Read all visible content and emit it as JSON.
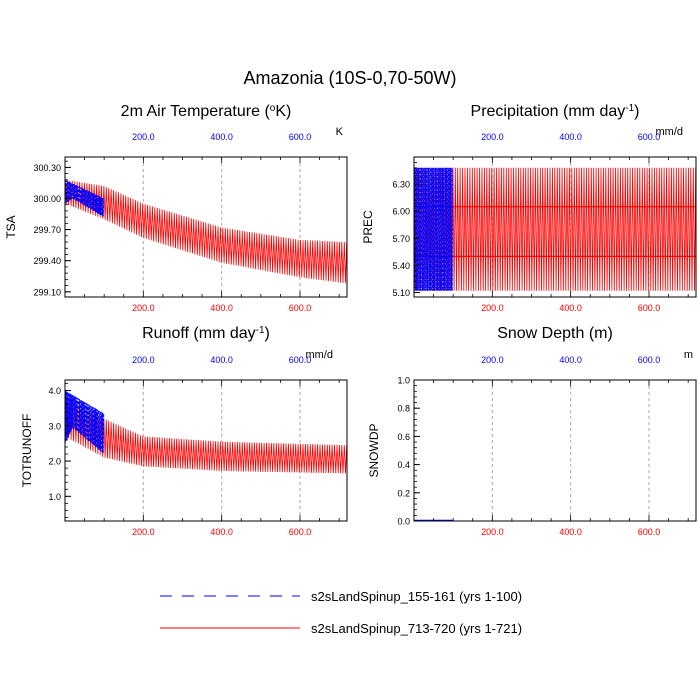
{
  "title": "Amazonia (10S-0,70-50W)",
  "legend": {
    "entries": [
      {
        "label": "s2sLandSpinup_155-161 (yrs 1-100)",
        "color": "#0000ff",
        "dash": true
      },
      {
        "label": "s2sLandSpinup_713-720 (yrs 1-721)",
        "color": "#ff0000",
        "dash": false
      }
    ]
  },
  "colors": {
    "series_a": "#0000ff",
    "series_b": "#ff0000",
    "top_axis": "#0000ff",
    "bottom_axis": "#ff0000",
    "grid": "#aaaaaa"
  },
  "chart_data": [
    {
      "type": "line",
      "title": "2m Air Temperature",
      "title_unit": "K",
      "title_unit_prefix": "o",
      "ylabel": "TSA",
      "unit_label": "K",
      "xlim": [
        0,
        720
      ],
      "ylim": [
        299.05,
        300.4
      ],
      "yticks": [
        299.1,
        299.4,
        299.7,
        300.0,
        300.3
      ],
      "ytick_labels": [
        "299.10",
        "299.40",
        "299.70",
        "300.00",
        "300.30"
      ],
      "top_ticks": [
        "200.0",
        "400.0",
        "600.0"
      ],
      "bottom_ticks": [
        "200.0",
        "400.0",
        "600.0"
      ],
      "tick_values": [
        200,
        400,
        600
      ],
      "series": [
        {
          "name": "s2sLandSpinup_155-161 (yrs 1-100)",
          "x_range": [
            0,
            100
          ],
          "upper": [
            [
              0,
              300.18
            ],
            [
              100,
              300.0
            ]
          ],
          "lower": [
            [
              0,
              299.95
            ],
            [
              20,
              300.0
            ],
            [
              100,
              299.82
            ]
          ]
        },
        {
          "name": "s2sLandSpinup_713-720 (yrs 1-721)",
          "x_range": [
            0,
            720
          ],
          "upper": [
            [
              0,
              300.18
            ],
            [
              100,
              300.12
            ],
            [
              200,
              299.95
            ],
            [
              400,
              299.72
            ],
            [
              600,
              299.6
            ],
            [
              720,
              299.58
            ]
          ],
          "lower": [
            [
              0,
              299.95
            ],
            [
              100,
              299.8
            ],
            [
              200,
              299.62
            ],
            [
              400,
              299.38
            ],
            [
              600,
              299.24
            ],
            [
              720,
              299.18
            ]
          ]
        }
      ]
    },
    {
      "type": "line",
      "title": "Precipitation (mm day",
      "title_suffix": "-1",
      "ylabel": "PREC",
      "unit_label": "mm/d",
      "xlim": [
        0,
        720
      ],
      "ylim": [
        5.05,
        6.6
      ],
      "yticks": [
        5.1,
        5.4,
        5.7,
        6.0,
        6.3
      ],
      "ytick_labels": [
        "5.10",
        "5.40",
        "5.70",
        "6.00",
        "6.30"
      ],
      "top_ticks": [
        "200.0",
        "400.0",
        "600.0"
      ],
      "bottom_ticks": [
        "200.0",
        "400.0",
        "600.0"
      ],
      "tick_values": [
        200,
        400,
        600
      ],
      "series": [
        {
          "name": "s2sLandSpinup_155-161 (yrs 1-100)",
          "x_range": [
            0,
            100
          ],
          "upper": [
            [
              0,
              6.48
            ],
            [
              100,
              6.48
            ]
          ],
          "lower": [
            [
              0,
              5.12
            ],
            [
              100,
              5.12
            ]
          ],
          "band": [
            5.5,
            6.05
          ]
        },
        {
          "name": "s2sLandSpinup_713-720 (yrs 1-721)",
          "x_range": [
            0,
            720
          ],
          "upper": [
            [
              0,
              6.48
            ],
            [
              720,
              6.48
            ]
          ],
          "lower": [
            [
              0,
              5.12
            ],
            [
              720,
              5.12
            ]
          ],
          "band": [
            5.5,
            6.05
          ]
        }
      ]
    },
    {
      "type": "line",
      "title": "Runoff (mm day",
      "title_suffix": "-1",
      "ylabel": "TOTRUNOFF",
      "unit_label": "mm/d",
      "xlim": [
        0,
        720
      ],
      "ylim": [
        0.3,
        4.3
      ],
      "yticks": [
        1.0,
        2.0,
        3.0,
        4.0
      ],
      "ytick_labels": [
        "1.0",
        "2.0",
        "3.0",
        "4.0"
      ],
      "top_ticks": [
        "200.0",
        "400.0",
        "600.0"
      ],
      "bottom_ticks": [
        "200.0",
        "400.0",
        "600.0"
      ],
      "tick_values": [
        200,
        400,
        600
      ],
      "series": [
        {
          "name": "s2sLandSpinup_155-161 (yrs 1-100)",
          "x_range": [
            0,
            100
          ],
          "upper": [
            [
              0,
              4.0
            ],
            [
              100,
              3.35
            ]
          ],
          "lower": [
            [
              0,
              2.5
            ],
            [
              20,
              2.95
            ],
            [
              100,
              2.2
            ]
          ]
        },
        {
          "name": "s2sLandSpinup_713-720 (yrs 1-721)",
          "x_range": [
            0,
            720
          ],
          "upper": [
            [
              0,
              3.85
            ],
            [
              100,
              3.2
            ],
            [
              200,
              2.7
            ],
            [
              400,
              2.55
            ],
            [
              720,
              2.45
            ]
          ],
          "lower": [
            [
              0,
              2.7
            ],
            [
              100,
              2.1
            ],
            [
              200,
              1.85
            ],
            [
              400,
              1.72
            ],
            [
              720,
              1.65
            ]
          ]
        }
      ]
    },
    {
      "type": "line",
      "title": "Snow Depth (m)",
      "ylabel": "SNOWDP",
      "unit_label": "m",
      "xlim": [
        0,
        720
      ],
      "ylim": [
        0.0,
        1.0
      ],
      "yticks": [
        0.0,
        0.2,
        0.4,
        0.6,
        0.8,
        1.0
      ],
      "ytick_labels": [
        "0.0",
        "0.2",
        "0.4",
        "0.6",
        "0.8",
        "1.0"
      ],
      "top_ticks": [
        "200.0",
        "400.0",
        "600.0"
      ],
      "bottom_ticks": [
        "200.0",
        "400.0",
        "600.0"
      ],
      "tick_values": [
        200,
        400,
        600
      ],
      "series": [
        {
          "name": "s2sLandSpinup_155-161 (yrs 1-100)",
          "x_range": [
            0,
            100
          ],
          "upper": [
            [
              0,
              0.0
            ],
            [
              100,
              0.0
            ]
          ],
          "lower": [
            [
              0,
              0.0
            ],
            [
              100,
              0.0
            ]
          ]
        },
        {
          "name": "s2sLandSpinup_713-720 (yrs 1-721)",
          "x_range": [
            0,
            720
          ],
          "upper": [
            [
              0,
              0.0
            ],
            [
              720,
              0.0
            ]
          ],
          "lower": [
            [
              0,
              0.0
            ],
            [
              720,
              0.0
            ]
          ]
        }
      ]
    }
  ]
}
